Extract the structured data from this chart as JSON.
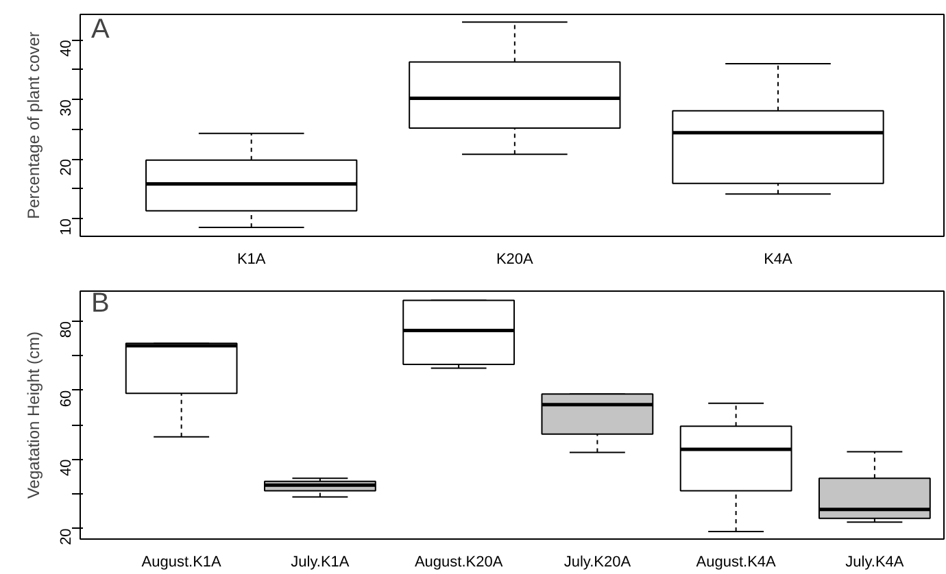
{
  "chart_data": [
    {
      "type": "box",
      "ylabel": "Percentage of plant cover",
      "annotations": [
        "A"
      ],
      "categories": [
        "K1A",
        "K20A",
        "K4A"
      ],
      "boxes": [
        {
          "low": 8.5,
          "q1": 11.3,
          "median": 15.8,
          "q3": 19.8,
          "high": 24.3
        },
        {
          "low": 20.8,
          "q1": 25.2,
          "median": 30.2,
          "q3": 36.3,
          "high": 43.0
        },
        {
          "low": 14.1,
          "q1": 15.9,
          "median": 24.4,
          "q3": 28.1,
          "high": 36.0
        }
      ],
      "colors": [
        "#ffffff",
        "#ffffff",
        "#ffffff"
      ],
      "ylim": [
        7,
        44.3
      ],
      "yticks": [
        10,
        {
          "value": 15,
          "label": null
        },
        20,
        {
          "value": 25,
          "label": null
        },
        30,
        {
          "value": 35,
          "label": null
        },
        40
      ],
      "grid": false
    },
    {
      "type": "box",
      "ylabel": "Vegatation Height (cm)",
      "annotations": [
        "B"
      ],
      "categories": [
        "August.K1A",
        "July.K1A",
        "August.K20A",
        "July.K20A",
        "August.K4A",
        "July.K4A"
      ],
      "boxes": [
        {
          "low": 46.5,
          "q1": 59.1,
          "median": 72.9,
          "q3": 73.6,
          "high": 73.6
        },
        {
          "low": 29.1,
          "q1": 30.9,
          "median": 32.5,
          "q3": 33.6,
          "high": 34.5
        },
        {
          "low": 66.4,
          "q1": 67.5,
          "median": 77.3,
          "q3": 86.0,
          "high": 86.0
        },
        {
          "low": 42.0,
          "q1": 47.3,
          "median": 55.8,
          "q3": 58.9,
          "high": 58.9
        },
        {
          "low": 19.1,
          "q1": 30.9,
          "median": 42.9,
          "q3": 49.6,
          "high": 56.2
        },
        {
          "low": 21.8,
          "q1": 22.9,
          "median": 25.5,
          "q3": 34.5,
          "high": 42.2
        }
      ],
      "colors": [
        "#ffffff",
        "#c4c4c4",
        "#ffffff",
        "#c4c4c4",
        "#ffffff",
        "#c4c4c4"
      ],
      "ylim": [
        16.9,
        88.7
      ],
      "yticks": [
        20,
        {
          "value": 30,
          "label": null
        },
        40,
        {
          "value": 50,
          "label": null
        },
        60,
        {
          "value": 70,
          "label": null
        },
        80
      ],
      "grid": false
    }
  ]
}
